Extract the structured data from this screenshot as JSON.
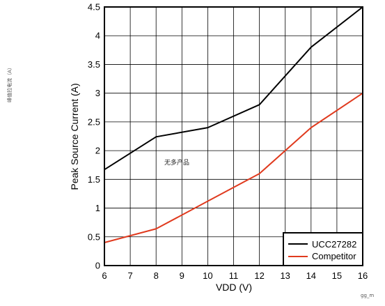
{
  "chart_data": {
    "type": "line",
    "title": "",
    "xlabel": "VDD (V)",
    "ylabel": "Peak Source Current (A)",
    "xlim": [
      6,
      16
    ],
    "ylim": [
      0,
      4.5
    ],
    "xticks": [
      "6",
      "7",
      "8",
      "9",
      "10",
      "11",
      "12",
      "13",
      "14",
      "15",
      "16"
    ],
    "yticks": [
      "0",
      "0.5",
      "1",
      "1.5",
      "2",
      "2.5",
      "3",
      "3.5",
      "4",
      "4.5"
    ],
    "grid": true,
    "legend_position": "bottom-right",
    "series": [
      {
        "name": "UCC27282",
        "color": "#000000",
        "x": [
          6,
          8,
          10,
          12,
          14,
          16
        ],
        "y": [
          1.67,
          2.24,
          2.4,
          2.8,
          3.8,
          4.5
        ]
      },
      {
        "name": "Competitor",
        "color": "#e03a1e",
        "x": [
          6,
          8,
          10,
          12,
          14,
          16
        ],
        "y": [
          0.4,
          0.64,
          1.12,
          1.6,
          2.4,
          3.0
        ]
      }
    ]
  },
  "side_note": "峰值拉电流（A）",
  "overlay_note": "无多产品",
  "watermark": "gg_m"
}
